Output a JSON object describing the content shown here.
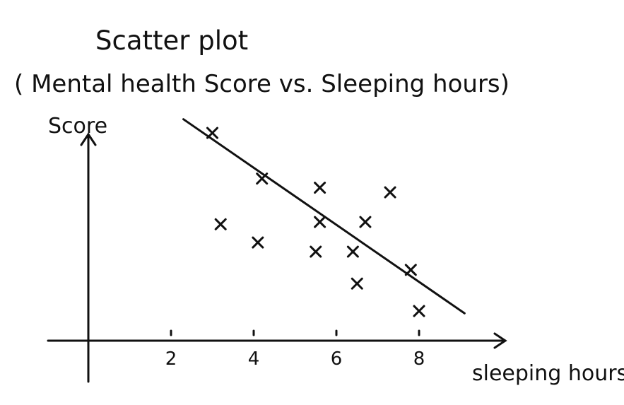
{
  "chart_data": {
    "type": "scatter",
    "title": "Scatter plot",
    "subtitle": "( Mental health Score vs. Sleeping hours)",
    "xlabel": "sleeping hours",
    "ylabel": "Score",
    "xlim": [
      -1,
      10
    ],
    "ylim": [
      0,
      10
    ],
    "x_ticks": [
      2,
      4,
      6,
      8
    ],
    "y_ticks": [],
    "points": [
      {
        "x": 3.0,
        "y": 9.1
      },
      {
        "x": 4.2,
        "y": 7.1
      },
      {
        "x": 5.6,
        "y": 6.7
      },
      {
        "x": 7.3,
        "y": 6.5
      },
      {
        "x": 3.2,
        "y": 5.1
      },
      {
        "x": 5.6,
        "y": 5.2
      },
      {
        "x": 6.7,
        "y": 5.2
      },
      {
        "x": 4.1,
        "y": 4.3
      },
      {
        "x": 5.5,
        "y": 3.9
      },
      {
        "x": 6.4,
        "y": 3.9
      },
      {
        "x": 7.8,
        "y": 3.1
      },
      {
        "x": 6.5,
        "y": 2.5
      },
      {
        "x": 8.0,
        "y": 1.3
      }
    ],
    "trend_line": {
      "x": [
        2.3,
        9.1
      ],
      "y": [
        9.7,
        1.2
      ]
    },
    "grid": false,
    "legend": "none",
    "color": "#111111"
  }
}
